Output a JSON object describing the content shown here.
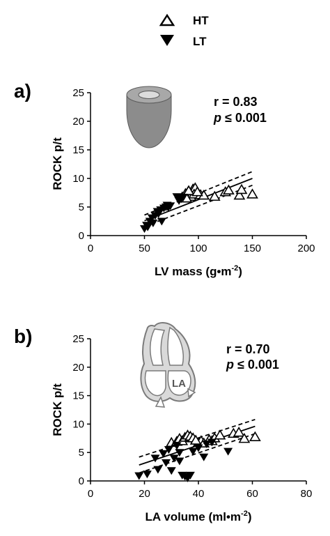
{
  "legend": [
    {
      "label": "HT",
      "marker": "open-triangle-up"
    },
    {
      "label": "LT",
      "marker": "filled-triangle-down"
    }
  ],
  "colors": {
    "axis": "#000000",
    "marker_fill": "#000000",
    "marker_open": "#ffffff",
    "icon_fill": "#8c8c8c",
    "icon_stroke": "#555555"
  },
  "chart_data": [
    {
      "panel_label": "a)",
      "type": "scatter",
      "xlabel": "LV mass (g•m",
      "xlabel_sup": "-2",
      "xlabel_end": ")",
      "ylabel": "ROCK p/t",
      "xlim": [
        0,
        200
      ],
      "ylim": [
        0,
        25
      ],
      "xticks": [
        "0",
        "50",
        "100",
        "150",
        "200"
      ],
      "yticks": [
        "0",
        "5",
        "10",
        "15",
        "20",
        "25"
      ],
      "stats": {
        "r": "r = 0.83",
        "p_italic": "p",
        "p_rest": " ≤ 0.001"
      },
      "icon": "ventricle-icon",
      "fit": {
        "x_range": [
          50,
          150
        ],
        "line": [
          [
            50,
            2.6
          ],
          [
            150,
            10.0
          ]
        ],
        "ci_upper": [
          [
            50,
            3.6
          ],
          [
            150,
            11.2
          ]
        ],
        "ci_lower": [
          [
            50,
            1.6
          ],
          [
            150,
            8.8
          ]
        ]
      },
      "series": [
        {
          "name": "HT",
          "marker": "open-triangle-up",
          "points": [
            [
              85,
              6.7
            ],
            [
              88,
              7.3
            ],
            [
              90,
              7.5
            ],
            [
              92,
              7.0
            ],
            [
              95,
              8.1
            ],
            [
              97,
              8.3
            ],
            [
              100,
              7.2
            ],
            [
              93,
              6.8
            ],
            [
              96,
              7.2
            ],
            [
              102,
              7.1
            ],
            [
              105,
              7.0
            ],
            [
              115,
              6.8
            ],
            [
              125,
              7.6
            ],
            [
              128,
              7.9
            ],
            [
              138,
              7.0
            ],
            [
              140,
              8.0
            ],
            [
              150,
              7.2
            ],
            [
              89,
              6.5
            ],
            [
              91,
              7.8
            ],
            [
              99,
              7.6
            ]
          ]
        },
        {
          "name": "LT",
          "marker": "filled-triangle-down",
          "points": [
            [
              50,
              1.2
            ],
            [
              52,
              1.8
            ],
            [
              55,
              2.5
            ],
            [
              57,
              3.1
            ],
            [
              58,
              2.2
            ],
            [
              60,
              3.5
            ],
            [
              62,
              4.2
            ],
            [
              63,
              3.8
            ],
            [
              65,
              4.5
            ],
            [
              66,
              2.5
            ],
            [
              68,
              4.8
            ],
            [
              70,
              5.0
            ],
            [
              71,
              5.3
            ],
            [
              72,
              4.9
            ],
            [
              74,
              5.2
            ],
            [
              80,
              6.8
            ],
            [
              82,
              6.1
            ],
            [
              84,
              6.4
            ],
            [
              86,
              6.7
            ],
            [
              53,
              1.5
            ]
          ]
        }
      ]
    },
    {
      "panel_label": "b)",
      "type": "scatter",
      "xlabel": "LA volume (ml•m",
      "xlabel_sup": "-2",
      "xlabel_end": ")",
      "ylabel": "ROCK p/t",
      "xlim": [
        0,
        80
      ],
      "ylim": [
        0,
        25
      ],
      "xticks": [
        "0",
        "20",
        "40",
        "60",
        "80"
      ],
      "yticks": [
        "0",
        "5",
        "10",
        "15",
        "20",
        "25"
      ],
      "stats": {
        "r": "r = 0.70",
        "p_italic": "p",
        "p_rest": " ≤ 0.001"
      },
      "icon": "heart-la-icon",
      "icon_text": "LA",
      "fit": {
        "x_range": [
          18,
          61
        ],
        "line": [
          [
            18,
            2.8
          ],
          [
            61,
            9.6
          ]
        ],
        "ci_upper": [
          [
            18,
            4.2
          ],
          [
            61,
            10.8
          ]
        ],
        "ci_lower": [
          [
            18,
            1.4
          ],
          [
            61,
            8.3
          ]
        ]
      },
      "series": [
        {
          "name": "HT",
          "marker": "open-triangle-up",
          "points": [
            [
              30,
              6.7
            ],
            [
              32,
              6.9
            ],
            [
              33,
              7.4
            ],
            [
              34,
              7.0
            ],
            [
              35,
              7.6
            ],
            [
              36,
              8.0
            ],
            [
              37,
              7.8
            ],
            [
              38,
              7.5
            ],
            [
              40,
              6.7
            ],
            [
              41,
              7.0
            ],
            [
              42,
              6.6
            ],
            [
              44,
              7.2
            ],
            [
              45,
              7.0
            ],
            [
              46,
              7.5
            ],
            [
              48,
              8.0
            ],
            [
              53,
              8.3
            ],
            [
              55,
              8.5
            ],
            [
              57,
              7.4
            ],
            [
              61,
              7.7
            ],
            [
              39,
              7.1
            ]
          ]
        },
        {
          "name": "LT",
          "marker": "filled-triangle-down",
          "points": [
            [
              18,
              0.9
            ],
            [
              21,
              1.2
            ],
            [
              24,
              4.0
            ],
            [
              25,
              2.0
            ],
            [
              27,
              4.8
            ],
            [
              28,
              3.2
            ],
            [
              29,
              5.5
            ],
            [
              30,
              1.8
            ],
            [
              31,
              4.0
            ],
            [
              32,
              6.2
            ],
            [
              33,
              5.0
            ],
            [
              34,
              1.0
            ],
            [
              35,
              0.8
            ],
            [
              36,
              0.5
            ],
            [
              37,
              1.0
            ],
            [
              38,
              5.2
            ],
            [
              40,
              5.8
            ],
            [
              42,
              4.2
            ],
            [
              43,
              6.5
            ],
            [
              45,
              6.8
            ],
            [
              51,
              5.2
            ],
            [
              33,
              3.5
            ]
          ]
        }
      ]
    }
  ]
}
